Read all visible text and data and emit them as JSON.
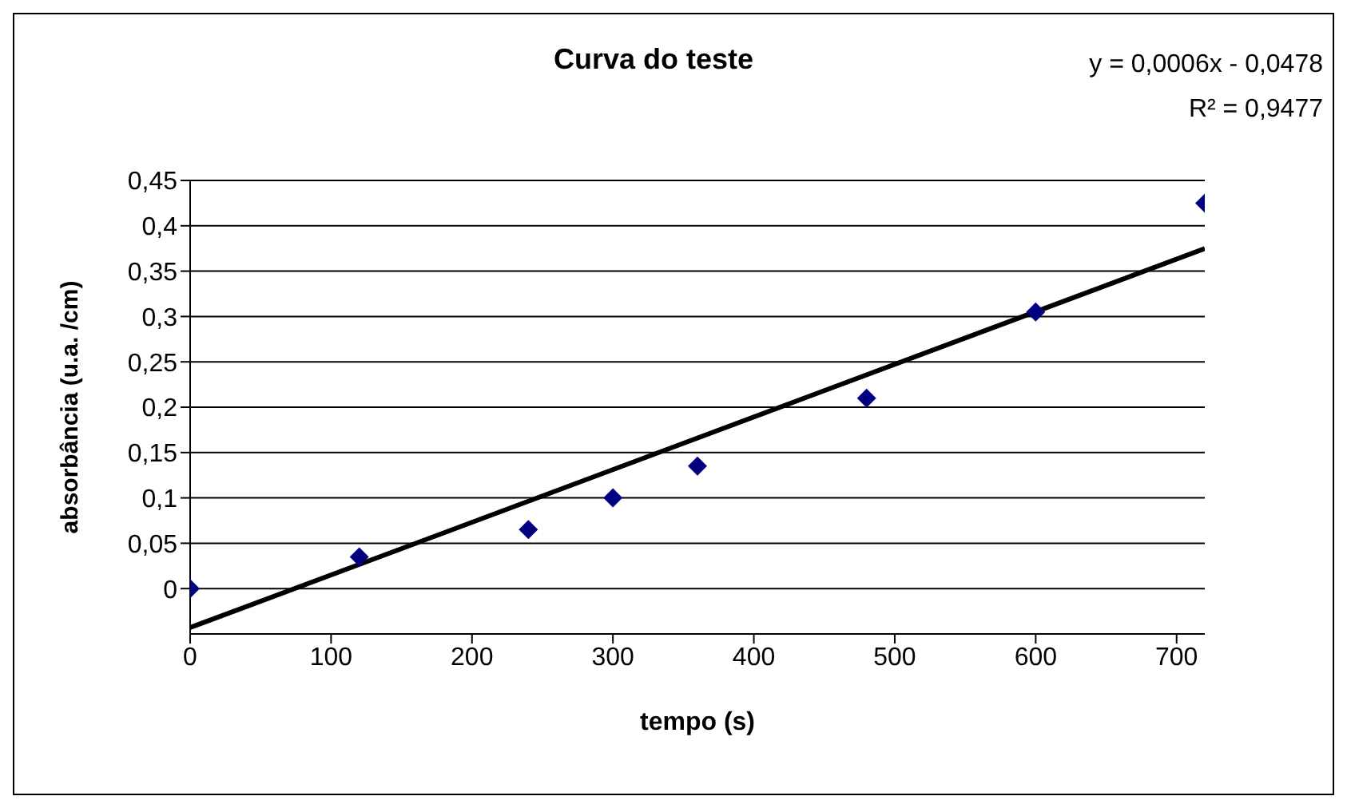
{
  "chart_data": {
    "type": "scatter",
    "title": "Curva do teste",
    "xlabel": "tempo (s)",
    "ylabel": "absorbância (u.a. /cm)",
    "annotations": [
      "y = 0,0006x - 0,0478",
      "R² = 0,9477"
    ],
    "series": [
      {
        "color": "#000080",
        "marker": "diamond",
        "x": [
          0,
          120,
          240,
          300,
          360,
          480,
          600,
          720
        ],
        "values": [
          0,
          0.035,
          0.065,
          0.1,
          0.135,
          0.21,
          0.305,
          0.425
        ]
      },
      {
        "type": "line",
        "color": "#000000",
        "marker": "none",
        "x": [
          0,
          720
        ],
        "values": [
          -0.043,
          0.375
        ]
      }
    ],
    "xlim": [
      0,
      720
    ],
    "xticks": [
      0,
      100,
      200,
      300,
      400,
      500,
      600,
      700
    ],
    "ylim": [
      -0.05,
      0.45
    ],
    "yticks": [
      0,
      {
        "value": 0.05,
        "label": "0,05"
      },
      {
        "value": 0.1,
        "label": "0,1"
      },
      {
        "value": 0.15,
        "label": "0,15"
      },
      {
        "value": 0.2,
        "label": "0,2"
      },
      {
        "value": 0.25,
        "label": "0,25"
      },
      {
        "value": 0.3,
        "label": "0,3"
      },
      {
        "value": 0.35,
        "label": "0,35"
      },
      {
        "value": 0.4,
        "label": "0,4"
      },
      {
        "value": 0.45,
        "label": "0,45"
      }
    ],
    "grid": "y",
    "legend": false
  }
}
